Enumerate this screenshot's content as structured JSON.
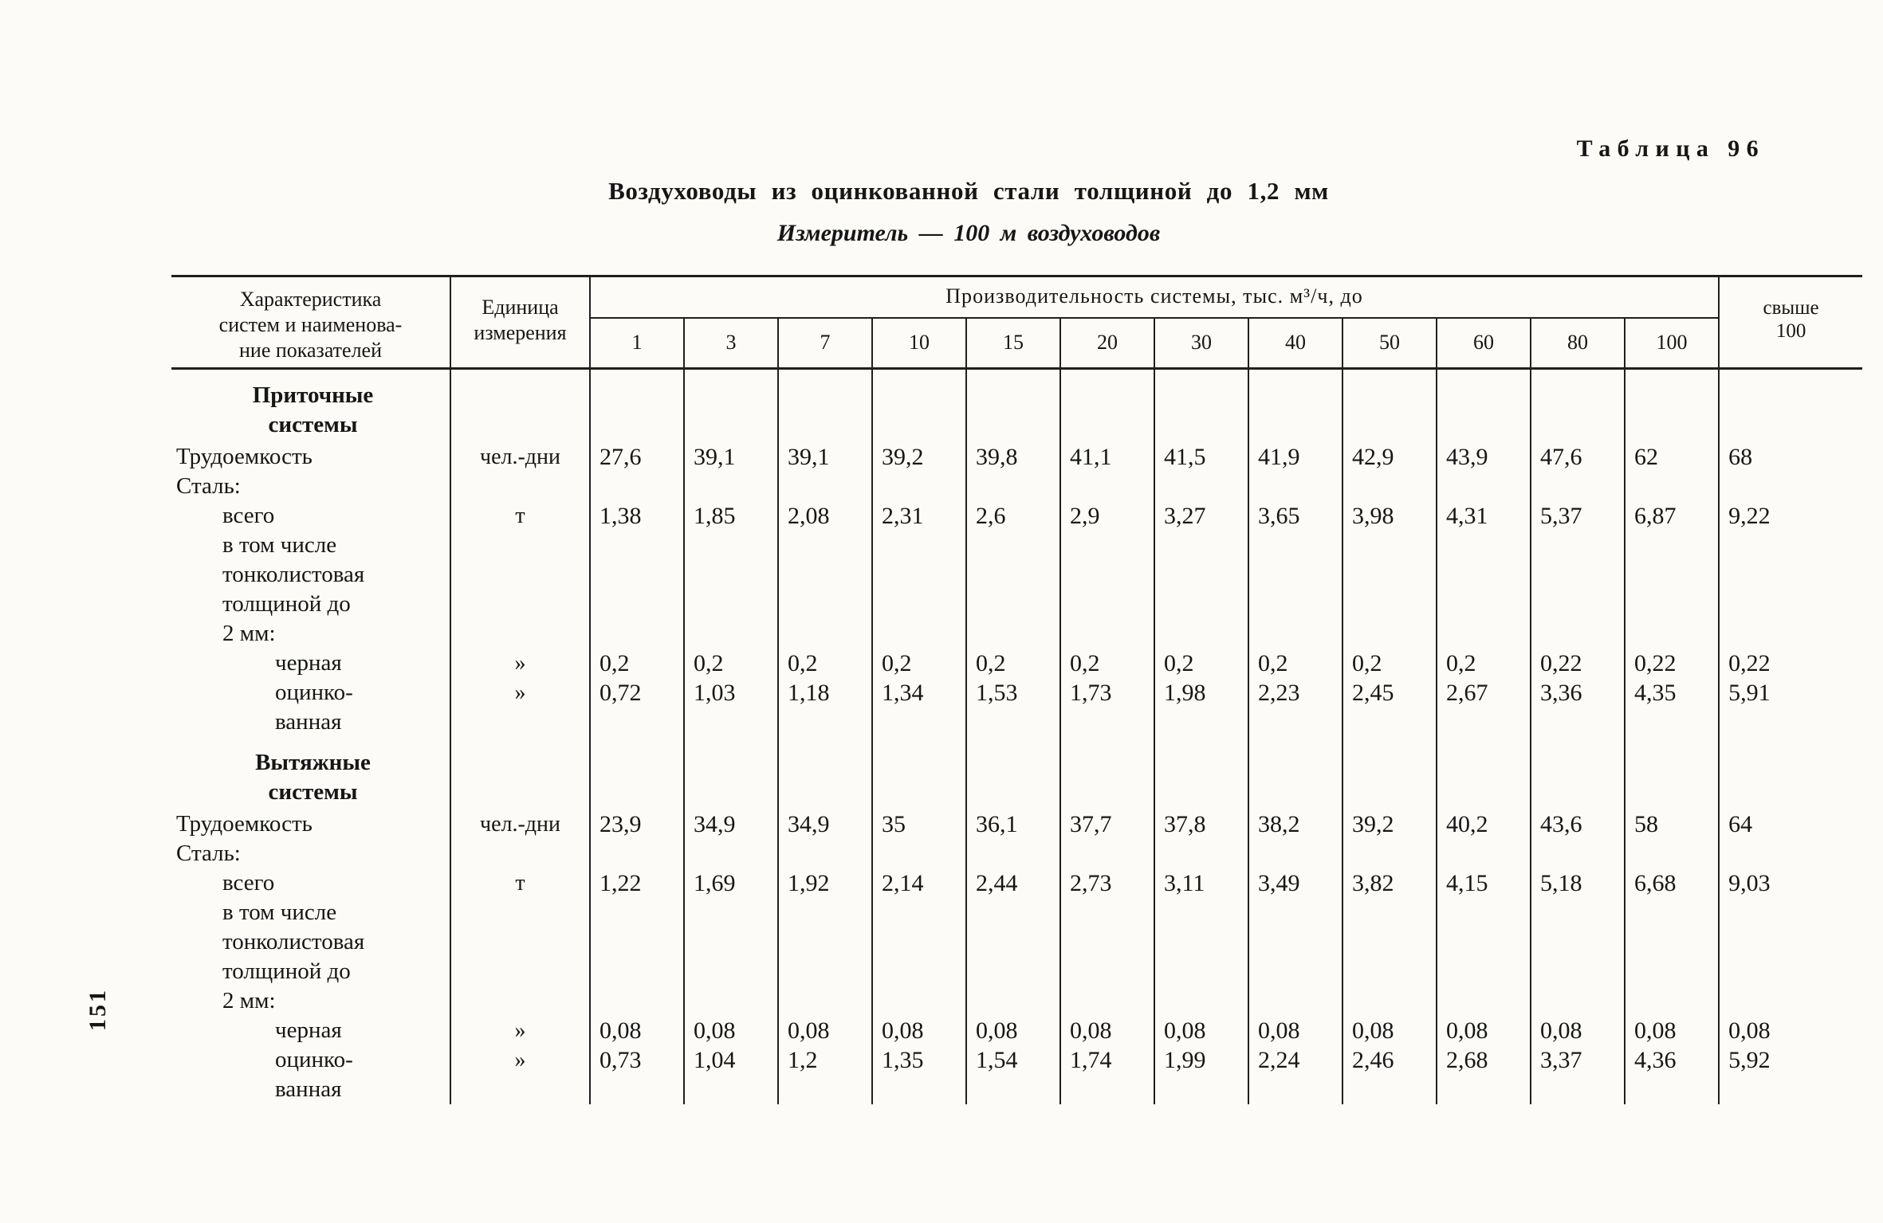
{
  "page": {
    "number": "151"
  },
  "header": {
    "table_caption": "Таблица 96",
    "title": "Воздуховоды из оцинкованной стали толщиной до 1,2 мм",
    "subtitle": "Измеритель — 100 м воздуховодов"
  },
  "table": {
    "col_label": "Характеристика\nсистем и наименова-\nние показателей",
    "col_unit": "Единица\nизмерения",
    "capacity_header": "Производительность системы, тыс. м³/ч, до",
    "capacity_values": [
      "1",
      "3",
      "7",
      "10",
      "15",
      "20",
      "30",
      "40",
      "50",
      "60",
      "80",
      "100"
    ],
    "over_label": "свыше\n100",
    "rows": [
      {
        "label": "Приточные\nсистемы",
        "style": "group",
        "unit": "",
        "values": []
      },
      {
        "label": "Трудоемкость",
        "style": "plain",
        "unit": "чел.-дни",
        "values": [
          "27,6",
          "39,1",
          "39,1",
          "39,2",
          "39,8",
          "41,1",
          "41,5",
          "41,9",
          "42,9",
          "43,9",
          "47,6",
          "62",
          "68"
        ]
      },
      {
        "label": "Сталь:",
        "style": "plain",
        "unit": "",
        "values": []
      },
      {
        "label": "всего",
        "style": "indent1",
        "unit": "т",
        "values": [
          "1,38",
          "1,85",
          "2,08",
          "2,31",
          "2,6",
          "2,9",
          "3,27",
          "3,65",
          "3,98",
          "4,31",
          "5,37",
          "6,87",
          "9,22"
        ]
      },
      {
        "label": "в том числе\nтонколистовая\nтолщиной до\n2 мм:",
        "style": "indent1",
        "unit": "",
        "values": []
      },
      {
        "label": "черная",
        "style": "indent2",
        "unit": "»",
        "values": [
          "0,2",
          "0,2",
          "0,2",
          "0,2",
          "0,2",
          "0,2",
          "0,2",
          "0,2",
          "0,2",
          "0,2",
          "0,22",
          "0,22",
          "0,22"
        ]
      },
      {
        "label": "оцинко-\nванная",
        "style": "indent2",
        "unit": "»",
        "values": [
          "0,72",
          "1,03",
          "1,18",
          "1,34",
          "1,53",
          "1,73",
          "1,98",
          "2,23",
          "2,45",
          "2,67",
          "3,36",
          "4,35",
          "5,91"
        ]
      },
      {
        "label": "Вытяжные\nсистемы",
        "style": "group",
        "unit": "",
        "values": []
      },
      {
        "label": "Трудоемкость",
        "style": "plain",
        "unit": "чел.-дни",
        "values": [
          "23,9",
          "34,9",
          "34,9",
          "35",
          "36,1",
          "37,7",
          "37,8",
          "38,2",
          "39,2",
          "40,2",
          "43,6",
          "58",
          "64"
        ]
      },
      {
        "label": "Сталь:",
        "style": "plain",
        "unit": "",
        "values": []
      },
      {
        "label": "всего",
        "style": "indent1",
        "unit": "т",
        "values": [
          "1,22",
          "1,69",
          "1,92",
          "2,14",
          "2,44",
          "2,73",
          "3,11",
          "3,49",
          "3,82",
          "4,15",
          "5,18",
          "6,68",
          "9,03"
        ]
      },
      {
        "label": "в том числе\nтонколистовая\nтолщиной до\n2 мм:",
        "style": "indent1",
        "unit": "",
        "values": []
      },
      {
        "label": "черная",
        "style": "indent2",
        "unit": "»",
        "values": [
          "0,08",
          "0,08",
          "0,08",
          "0,08",
          "0,08",
          "0,08",
          "0,08",
          "0,08",
          "0,08",
          "0,08",
          "0,08",
          "0,08",
          "0,08"
        ]
      },
      {
        "label": "оцинко-\nванная",
        "style": "indent2",
        "unit": "»",
        "values": [
          "0,73",
          "1,04",
          "1,2",
          "1,35",
          "1,54",
          "1,74",
          "1,99",
          "2,24",
          "2,46",
          "2,68",
          "3,37",
          "4,36",
          "5,92"
        ]
      }
    ]
  }
}
